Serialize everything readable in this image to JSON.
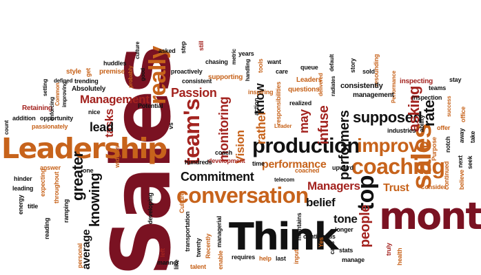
{
  "palette": {
    "dark_red": "#7a1222",
    "red": "#a3231f",
    "orange": "#c7631b",
    "gold": "#d8930f",
    "black": "#111111"
  },
  "words": [
    {
      "text": "Sales",
      "color": "#7a1222"
    },
    {
      "text": "Leadership",
      "color": "#c7631b"
    },
    {
      "text": "month",
      "color": "#7a1222"
    },
    {
      "text": "Think",
      "color": "#111111"
    },
    {
      "text": "production",
      "color": "#111111"
    },
    {
      "text": "conversation",
      "color": "#c7631b"
    },
    {
      "text": "coaching",
      "color": "#c7631b"
    },
    {
      "text": "improve",
      "color": "#c7631b"
    },
    {
      "text": "sales",
      "color": "#c7631b"
    },
    {
      "text": "really",
      "color": "#c7631b"
    },
    {
      "text": "top",
      "color": "#111111"
    },
    {
      "text": "team's",
      "color": "#a3231f"
    },
    {
      "text": "Management",
      "color": "#a3231f"
    },
    {
      "text": "Passion",
      "color": "#a3231f"
    },
    {
      "text": "Commitment",
      "color": "#111111"
    },
    {
      "text": "performance",
      "color": "#c7631b"
    },
    {
      "text": "supposed",
      "color": "#111111"
    },
    {
      "text": "Managers",
      "color": "#a3231f"
    },
    {
      "text": "people",
      "color": "#a3231f"
    },
    {
      "text": "greater",
      "color": "#111111"
    },
    {
      "text": "knowing",
      "color": "#111111"
    },
    {
      "text": "average",
      "color": "#111111"
    },
    {
      "text": "monitoring",
      "color": "#a3231f"
    },
    {
      "text": "tasks",
      "color": "#a3231f"
    },
    {
      "text": "lead",
      "color": "#111111"
    },
    {
      "text": "asking",
      "color": "#a3231f"
    },
    {
      "text": "rate",
      "color": "#111111"
    },
    {
      "text": "infuse",
      "color": "#a3231f"
    },
    {
      "text": "performers",
      "color": "#111111"
    },
    {
      "text": "Vision",
      "color": "#c7631b"
    },
    {
      "text": "rather",
      "color": "#c7631b"
    },
    {
      "text": "know",
      "color": "#111111"
    },
    {
      "text": "may",
      "color": "#a3231f"
    },
    {
      "text": "belief",
      "color": "#111111"
    },
    {
      "text": "tone",
      "color": "#111111"
    },
    {
      "text": "Trust",
      "color": "#c7631b"
    },
    {
      "text": "Absolutely",
      "color": "#111111"
    },
    {
      "text": "Retaining",
      "color": "#a3231f"
    },
    {
      "text": "nice",
      "color": "#111111"
    },
    {
      "text": "addition",
      "color": "#111111"
    },
    {
      "text": "opportunity",
      "color": "#111111"
    },
    {
      "text": "passionately",
      "color": "#c7631b"
    },
    {
      "text": "count",
      "color": "#111111"
    },
    {
      "text": "huddles",
      "color": "#111111"
    },
    {
      "text": "premise",
      "color": "#c7631b"
    },
    {
      "text": "culture",
      "color": "#111111"
    },
    {
      "text": "asked",
      "color": "#111111"
    },
    {
      "text": "step",
      "color": "#111111"
    },
    {
      "text": "still",
      "color": "#a3231f"
    },
    {
      "text": "proactively",
      "color": "#111111"
    },
    {
      "text": "chasing",
      "color": "#111111"
    },
    {
      "text": "supporting",
      "color": "#c7631b"
    },
    {
      "text": "consistent",
      "color": "#111111"
    },
    {
      "text": "metric",
      "color": "#111111"
    },
    {
      "text": "years",
      "color": "#111111"
    },
    {
      "text": "handling",
      "color": "#111111"
    },
    {
      "text": "tools",
      "color": "#c7631b"
    },
    {
      "text": "want",
      "color": "#111111"
    },
    {
      "text": "inspiring",
      "color": "#c7631b"
    },
    {
      "text": "care",
      "color": "#111111"
    },
    {
      "text": "queue",
      "color": "#111111"
    },
    {
      "text": "default",
      "color": "#111111"
    },
    {
      "text": "story",
      "color": "#111111"
    },
    {
      "text": "sold",
      "color": "#111111"
    },
    {
      "text": "resounding",
      "color": "#c7631b"
    },
    {
      "text": "Leaders",
      "color": "#c7631b"
    },
    {
      "text": "delivered",
      "color": "#c7631b"
    },
    {
      "text": "radiates",
      "color": "#111111"
    },
    {
      "text": "consistently",
      "color": "#111111"
    },
    {
      "text": "Performance",
      "color": "#c7631b"
    },
    {
      "text": "inspecting",
      "color": "#a3231f"
    },
    {
      "text": "teams",
      "color": "#111111"
    },
    {
      "text": "stay",
      "color": "#111111"
    },
    {
      "text": "questions",
      "color": "#c7631b"
    },
    {
      "text": "management",
      "color": "#111111"
    },
    {
      "text": "inspection",
      "color": "#111111"
    },
    {
      "text": "success",
      "color": "#c7631b"
    },
    {
      "text": "office",
      "color": "#c7631b"
    },
    {
      "text": "responsibilities",
      "color": "#c7631b"
    },
    {
      "text": "realized",
      "color": "#111111"
    },
    {
      "text": "action",
      "color": "#111111"
    },
    {
      "text": "Leader",
      "color": "#c7631b"
    },
    {
      "text": "telecom",
      "color": "#111111"
    },
    {
      "text": "industries",
      "color": "#111111"
    },
    {
      "text": "ability",
      "color": "#111111"
    },
    {
      "text": "offer",
      "color": "#c7631b"
    },
    {
      "text": "away",
      "color": "#111111"
    },
    {
      "text": "Purpose",
      "color": "#c7631b"
    },
    {
      "text": "notch",
      "color": "#111111"
    },
    {
      "text": "take",
      "color": "#111111"
    },
    {
      "text": "seek",
      "color": "#111111"
    },
    {
      "text": "next",
      "color": "#111111"
    },
    {
      "text": "continued",
      "color": "#c7631b"
    },
    {
      "text": "believe",
      "color": "#c7631b"
    },
    {
      "text": "Consider",
      "color": "#c7631b"
    },
    {
      "text": "upward",
      "color": "#111111"
    },
    {
      "text": "time",
      "color": "#111111"
    },
    {
      "text": "coach",
      "color": "#111111"
    },
    {
      "text": "development",
      "color": "#a3231f"
    },
    {
      "text": "hundreds",
      "color": "#111111"
    },
    {
      "text": "vs",
      "color": "#111111"
    },
    {
      "text": "Potential",
      "color": "#111111"
    },
    {
      "text": "Common",
      "color": "#c7631b"
    },
    {
      "text": "trending",
      "color": "#111111"
    },
    {
      "text": "style",
      "color": "#c7631b"
    },
    {
      "text": "get",
      "color": "#c7631b"
    },
    {
      "text": "probably",
      "color": "#c7631b"
    },
    {
      "text": "good",
      "color": "#111111"
    },
    {
      "text": "improving",
      "color": "#111111"
    },
    {
      "text": "defined",
      "color": "#111111"
    },
    {
      "text": "setting",
      "color": "#111111"
    },
    {
      "text": "enforcing",
      "color": "#111111"
    },
    {
      "text": "answer",
      "color": "#c7631b"
    },
    {
      "text": "hinder",
      "color": "#111111"
    },
    {
      "text": "leading",
      "color": "#111111"
    },
    {
      "text": "expecting",
      "color": "#c7631b"
    },
    {
      "text": "throughout",
      "color": "#c7631b"
    },
    {
      "text": "one",
      "color": "#111111"
    },
    {
      "text": "widgets",
      "color": "#c7631b"
    },
    {
      "text": "energy",
      "color": "#111111"
    },
    {
      "text": "title",
      "color": "#111111"
    },
    {
      "text": "reading",
      "color": "#111111"
    },
    {
      "text": "ramping",
      "color": "#111111"
    },
    {
      "text": "personal",
      "color": "#c7631b"
    },
    {
      "text": "developing",
      "color": "#111111"
    },
    {
      "text": "Culture",
      "color": "#c7631b"
    },
    {
      "text": "transportation",
      "color": "#111111"
    },
    {
      "text": "twenty",
      "color": "#111111"
    },
    {
      "text": "Recently",
      "color": "#c7631b"
    },
    {
      "text": "manner",
      "color": "#111111"
    },
    {
      "text": "left",
      "color": "#a3231f"
    },
    {
      "text": "like",
      "color": "#111111"
    },
    {
      "text": "talent",
      "color": "#c7631b"
    },
    {
      "text": "managerial",
      "color": "#111111"
    },
    {
      "text": "enable",
      "color": "#c7631b"
    },
    {
      "text": "requires",
      "color": "#111111"
    },
    {
      "text": "help",
      "color": "#c7631b"
    },
    {
      "text": "last",
      "color": "#111111"
    },
    {
      "text": "input",
      "color": "#c7631b"
    },
    {
      "text": "maintains",
      "color": "#111111"
    },
    {
      "text": "continuous",
      "color": "#111111"
    },
    {
      "text": "longer",
      "color": "#111111"
    },
    {
      "text": "Yes",
      "color": "#c7631b"
    },
    {
      "text": "calls",
      "color": "#111111"
    },
    {
      "text": "stats",
      "color": "#111111"
    },
    {
      "text": "manage",
      "color": "#111111"
    },
    {
      "text": "truly",
      "color": "#a3231f"
    },
    {
      "text": "health",
      "color": "#c7631b"
    },
    {
      "text": "coached",
      "color": "#c7631b"
    }
  ]
}
